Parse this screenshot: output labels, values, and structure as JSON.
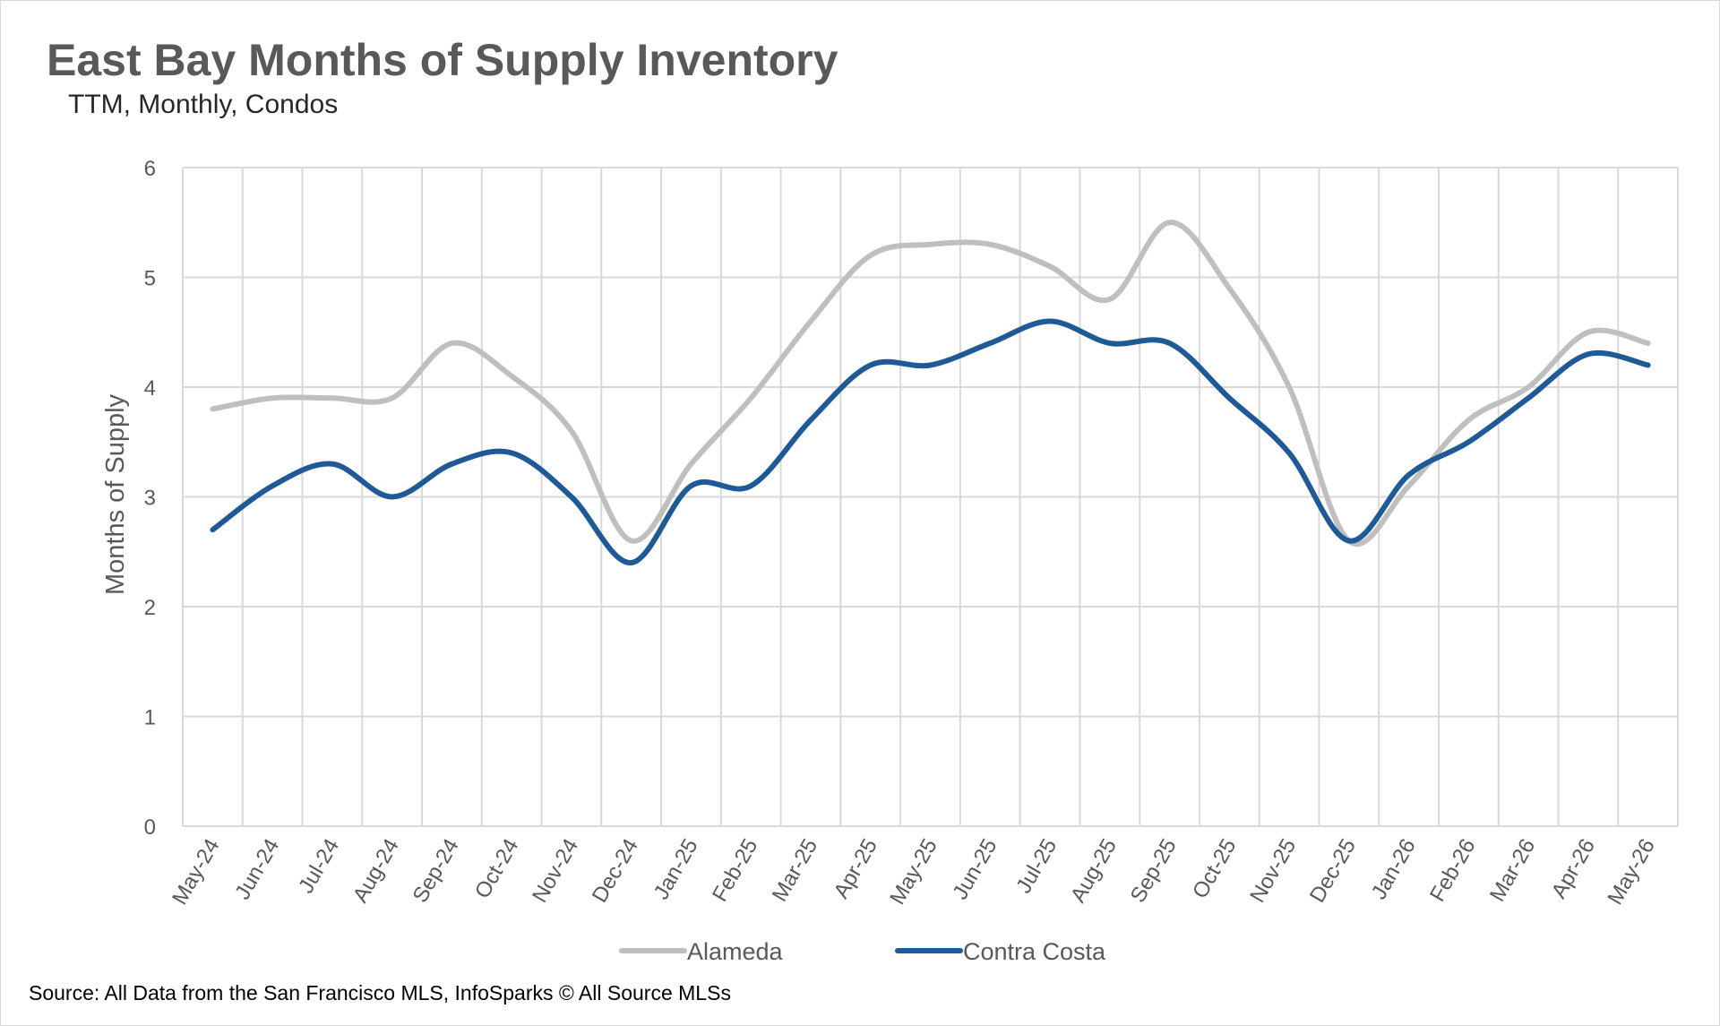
{
  "chart_data": {
    "type": "line",
    "title": "East Bay Months of Supply Inventory",
    "subtitle": "TTM, Monthly, Condos",
    "ylabel": "Months of Supply",
    "xlabel": "",
    "ylim": [
      0,
      6
    ],
    "yticks": [
      "0",
      "1",
      "2",
      "3",
      "4",
      "5",
      "6"
    ],
    "grid": true,
    "legend_position": "bottom",
    "categories": [
      "May-24",
      "Jun-24",
      "Jul-24",
      "Aug-24",
      "Sep-24",
      "Oct-24",
      "Nov-24",
      "Dec-24",
      "Jan-25",
      "Feb-25",
      "Mar-25",
      "Apr-25",
      "May-25",
      "Jun-25",
      "Jul-25",
      "Aug-25",
      "Sep-25",
      "Oct-25",
      "Nov-25",
      "Dec-25",
      "Jan-26",
      "Feb-26",
      "Mar-26",
      "Apr-26",
      "May-26"
    ],
    "series": [
      {
        "name": "Alameda",
        "color": "#bfbfbf",
        "values": [
          3.8,
          3.9,
          3.9,
          3.9,
          4.4,
          4.1,
          3.6,
          2.6,
          3.3,
          3.9,
          4.6,
          5.2,
          5.3,
          5.3,
          5.1,
          4.8,
          5.5,
          4.9,
          4.0,
          2.6,
          3.1,
          3.7,
          4.0,
          4.5,
          4.4
        ]
      },
      {
        "name": "Contra Costa",
        "color": "#1f5a96",
        "values": [
          2.7,
          3.1,
          3.3,
          3.0,
          3.3,
          3.4,
          3.0,
          2.4,
          3.1,
          3.1,
          3.7,
          4.2,
          4.2,
          4.4,
          4.6,
          4.4,
          4.4,
          3.9,
          3.4,
          2.6,
          3.2,
          3.5,
          3.9,
          4.3,
          4.2
        ]
      }
    ]
  },
  "source": "Source: All Data from the San Francisco MLS, InfoSparks © All Source MLSs"
}
